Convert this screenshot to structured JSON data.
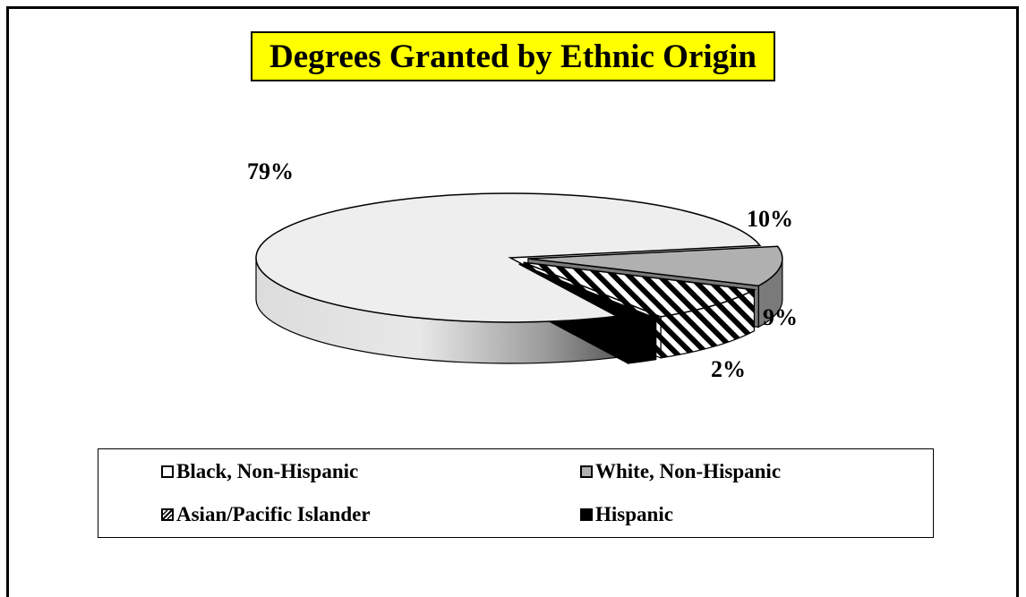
{
  "title": "Degrees Granted by Ethnic Origin",
  "colors": {
    "title_background": "#ffff00",
    "black_non_hispanic": "#eeeeee",
    "white_non_hispanic": "#b0b0b0",
    "hispanic": "#000000"
  },
  "chart_data": {
    "type": "pie",
    "style": "3d-exploded",
    "title": "Degrees Granted by Ethnic Origin",
    "slices": [
      {
        "name": "Black, Non-Hispanic",
        "value": 79,
        "label": "79%",
        "fill": "light-gray"
      },
      {
        "name": "White, Non-Hispanic",
        "value": 10,
        "label": "10%",
        "fill": "gray"
      },
      {
        "name": "Asian/Pacific Islander",
        "value": 9,
        "label": "9%",
        "fill": "diagonal-hatch"
      },
      {
        "name": "Hispanic",
        "value": 2,
        "label": "2%",
        "fill": "black"
      }
    ],
    "legend_position": "bottom",
    "legend": [
      {
        "label": "Black, Non-Hispanic",
        "fill": "light-gray"
      },
      {
        "label": "White, Non-Hispanic",
        "fill": "gray"
      },
      {
        "label": "Asian/Pacific Islander",
        "fill": "diagonal-hatch"
      },
      {
        "label": "Hispanic",
        "fill": "black"
      }
    ]
  }
}
